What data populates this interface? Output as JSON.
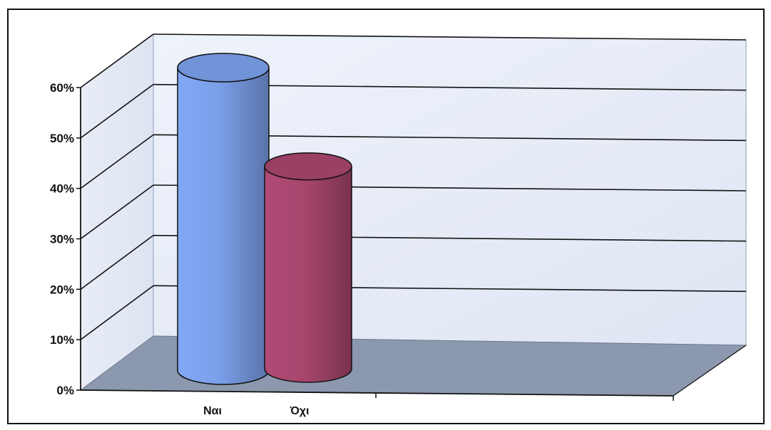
{
  "chart_data": {
    "type": "bar",
    "style": "3d-cylinder",
    "categories": [
      "Ναι",
      "Όχι"
    ],
    "values": [
      61,
      41
    ],
    "value_unit": "%",
    "colors": [
      "#7ba0ea",
      "#a8466e"
    ],
    "ylim": [
      0,
      60
    ],
    "yticks": [
      "0%",
      "10%",
      "20%",
      "30%",
      "40%",
      "50%",
      "60%"
    ],
    "grid": true,
    "legend": "none",
    "title": "",
    "xlabel": "",
    "ylabel": ""
  }
}
